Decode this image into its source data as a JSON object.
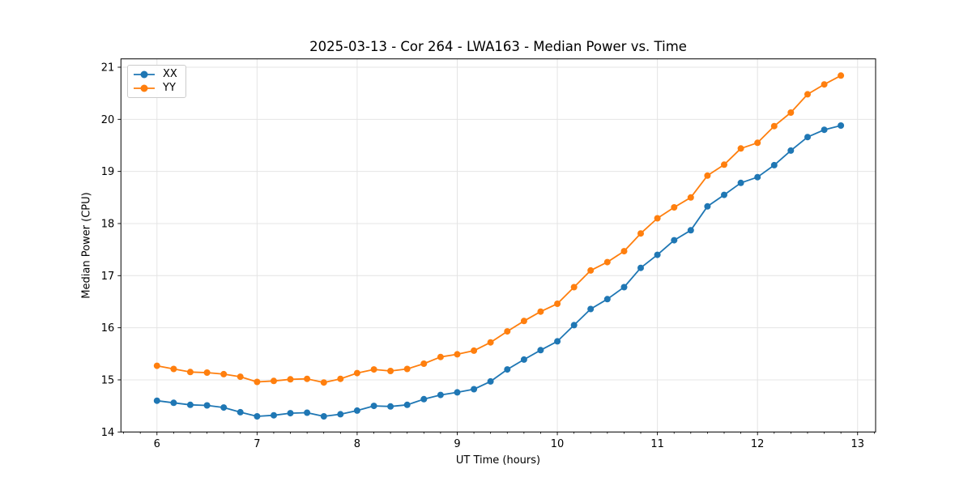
{
  "chart_data": {
    "type": "line",
    "title": "2025-03-13 - Cor 264 - LWA163 - Median Power vs. Time",
    "xlabel": "UT Time (hours)",
    "ylabel": "Median Power (CPU)",
    "xlim": [
      5.64,
      13.18
    ],
    "ylim": [
      14.0,
      21.16
    ],
    "xticks": [
      6,
      7,
      8,
      9,
      10,
      11,
      12,
      13
    ],
    "yticks": [
      14,
      15,
      16,
      17,
      18,
      19,
      20,
      21
    ],
    "x_minor_tick_step": 0.1667,
    "grid": true,
    "grid_color": "#e4e4e4",
    "legend_position": "upper left",
    "marker": "circle",
    "x": [
      6.0,
      6.167,
      6.333,
      6.5,
      6.667,
      6.833,
      7.0,
      7.167,
      7.333,
      7.5,
      7.667,
      7.833,
      8.0,
      8.167,
      8.333,
      8.5,
      8.667,
      8.833,
      9.0,
      9.167,
      9.333,
      9.5,
      9.667,
      9.833,
      10.0,
      10.167,
      10.333,
      10.5,
      10.667,
      10.833,
      11.0,
      11.167,
      11.333,
      11.5,
      11.667,
      11.833,
      12.0,
      12.167,
      12.333,
      12.5,
      12.667,
      12.833
    ],
    "series": [
      {
        "name": "XX",
        "color": "#1f77b4",
        "values": [
          14.6,
          14.56,
          14.52,
          14.51,
          14.47,
          14.38,
          14.3,
          14.32,
          14.36,
          14.37,
          14.3,
          14.34,
          14.41,
          14.5,
          14.49,
          14.52,
          14.63,
          14.71,
          14.76,
          14.82,
          14.97,
          15.2,
          15.39,
          15.57,
          15.74,
          16.05,
          16.36,
          16.55,
          16.78,
          17.15,
          17.4,
          17.68,
          17.87,
          18.33,
          18.55,
          18.78,
          18.89,
          19.12,
          19.4,
          19.66,
          19.8,
          19.88
        ]
      },
      {
        "name": "YY",
        "color": "#ff7f0e",
        "values": [
          15.27,
          15.21,
          15.15,
          15.14,
          15.11,
          15.06,
          14.96,
          14.98,
          15.01,
          15.02,
          14.95,
          15.02,
          15.13,
          15.2,
          15.17,
          15.21,
          15.31,
          15.44,
          15.49,
          15.56,
          15.72,
          15.93,
          16.13,
          16.31,
          16.46,
          16.78,
          17.1,
          17.26,
          17.47,
          17.81,
          18.1,
          18.31,
          18.5,
          18.92,
          19.13,
          19.44,
          19.55,
          19.87,
          20.13,
          20.48,
          20.67,
          20.84
        ]
      }
    ]
  }
}
